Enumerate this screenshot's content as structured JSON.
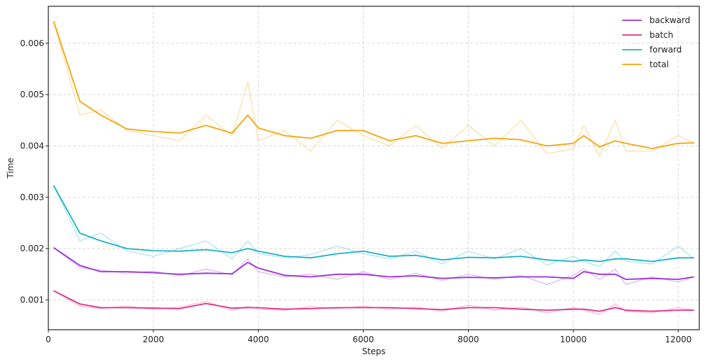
{
  "chart_data": {
    "type": "line",
    "xlabel": "Steps",
    "ylabel": "Time",
    "xlim": [
      0,
      12400
    ],
    "ylim": [
      0.00042,
      0.00672
    ],
    "x_ticks": [
      0,
      2000,
      4000,
      6000,
      8000,
      10000,
      12000
    ],
    "x_tick_labels": [
      "0",
      "2000",
      "4000",
      "6000",
      "8000",
      "10000",
      "12000"
    ],
    "y_ticks": [
      0.001,
      0.002,
      0.003,
      0.004,
      0.005,
      0.006
    ],
    "y_tick_labels": [
      "0.001",
      "0.002",
      "0.003",
      "0.004",
      "0.005",
      "0.006"
    ],
    "grid": true,
    "legend_placement": "top-right",
    "x": [
      100,
      600,
      1000,
      1500,
      2000,
      2500,
      3000,
      3500,
      3800,
      4000,
      4500,
      5000,
      5500,
      6000,
      6500,
      7000,
      7500,
      8000,
      8500,
      9000,
      9500,
      10000,
      10200,
      10500,
      10800,
      11000,
      11500,
      12000,
      12300
    ],
    "series": [
      {
        "name": "backward",
        "color": "#9b30d9",
        "smoothed": [
          0.00202,
          0.00167,
          0.00155,
          0.00155,
          0.00153,
          0.0015,
          0.00152,
          0.00151,
          0.00173,
          0.00162,
          0.00148,
          0.00145,
          0.0015,
          0.0015,
          0.00145,
          0.00147,
          0.00142,
          0.00144,
          0.00143,
          0.00145,
          0.00145,
          0.00142,
          0.00155,
          0.0015,
          0.0015,
          0.0014,
          0.00142,
          0.0014,
          0.00145
        ],
        "raw": [
          0.00202,
          0.00163,
          0.00158,
          0.00152,
          0.00156,
          0.00147,
          0.0016,
          0.00149,
          0.0018,
          0.00155,
          0.00145,
          0.0015,
          0.0014,
          0.00155,
          0.0014,
          0.00152,
          0.00138,
          0.0015,
          0.0014,
          0.00148,
          0.0013,
          0.00148,
          0.0016,
          0.0014,
          0.0016,
          0.0013,
          0.00145,
          0.00135,
          0.00145
        ]
      },
      {
        "name": "batch",
        "color": "#e0308a",
        "smoothed": [
          0.00118,
          0.00092,
          0.00085,
          0.00085,
          0.00084,
          0.00083,
          0.00093,
          0.00084,
          0.00085,
          0.00085,
          0.00082,
          0.00083,
          0.00085,
          0.00085,
          0.00085,
          0.00083,
          0.00081,
          0.00085,
          0.00085,
          0.00082,
          0.0008,
          0.00082,
          0.00082,
          0.00078,
          0.00085,
          0.0008,
          0.00078,
          0.0008,
          0.0008
        ],
        "raw": [
          0.00118,
          0.00088,
          0.00083,
          0.00088,
          0.00082,
          0.00086,
          0.00097,
          0.0008,
          0.00088,
          0.00082,
          0.0008,
          0.00087,
          0.00083,
          0.00088,
          0.00082,
          0.00086,
          0.00078,
          0.0009,
          0.0008,
          0.00086,
          0.00075,
          0.00085,
          0.0008,
          0.00072,
          0.00092,
          0.00078,
          0.00075,
          0.00085,
          0.0008
        ]
      },
      {
        "name": "forward",
        "color": "#1ab2c8",
        "smoothed": [
          0.00323,
          0.0023,
          0.00215,
          0.002,
          0.00196,
          0.00195,
          0.00198,
          0.00192,
          0.002,
          0.00195,
          0.00185,
          0.00182,
          0.0019,
          0.00195,
          0.00185,
          0.00187,
          0.00178,
          0.00183,
          0.00182,
          0.00185,
          0.00178,
          0.00175,
          0.00178,
          0.00175,
          0.0018,
          0.0018,
          0.00175,
          0.00182,
          0.00182
        ],
        "raw": [
          0.00323,
          0.00215,
          0.0023,
          0.00195,
          0.00185,
          0.002,
          0.00215,
          0.0018,
          0.00215,
          0.0019,
          0.00182,
          0.00188,
          0.00205,
          0.0019,
          0.0018,
          0.00195,
          0.0017,
          0.00195,
          0.0018,
          0.002,
          0.00168,
          0.00185,
          0.00175,
          0.00165,
          0.00195,
          0.00175,
          0.0017,
          0.00205,
          0.0018
        ]
      },
      {
        "name": "total",
        "color": "#f5a50a",
        "smoothed": [
          0.00643,
          0.00487,
          0.0046,
          0.00433,
          0.00428,
          0.00425,
          0.0044,
          0.00425,
          0.0046,
          0.00435,
          0.0042,
          0.00415,
          0.0043,
          0.0043,
          0.0041,
          0.0042,
          0.00405,
          0.0041,
          0.00415,
          0.00412,
          0.004,
          0.00405,
          0.0042,
          0.00398,
          0.0041,
          0.00405,
          0.00395,
          0.00405,
          0.00406
        ],
        "raw": [
          0.00643,
          0.0046,
          0.0047,
          0.0043,
          0.0042,
          0.0041,
          0.0046,
          0.0042,
          0.00525,
          0.0041,
          0.0043,
          0.0039,
          0.0045,
          0.0042,
          0.004,
          0.0044,
          0.00395,
          0.0044,
          0.004,
          0.0045,
          0.00385,
          0.00395,
          0.0044,
          0.0038,
          0.0045,
          0.0039,
          0.0039,
          0.0042,
          0.00406
        ]
      }
    ]
  }
}
